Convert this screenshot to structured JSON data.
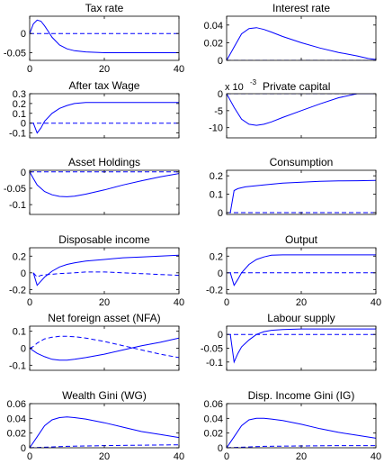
{
  "chart_data": [
    {
      "type": "line",
      "title": "Tax rate",
      "xlim": [
        0,
        40
      ],
      "ylim": [
        -0.07,
        0.045
      ],
      "xticks": [
        0,
        20,
        40
      ],
      "yticks": [
        -0.05,
        0,
        0.05
      ],
      "ytick_labels": [
        "-0.05",
        "0",
        "0.05"
      ],
      "xtick_labels": [
        "0",
        "20",
        "40"
      ],
      "series": [
        {
          "style": "solid",
          "x": [
            0,
            1,
            2,
            3,
            4,
            5,
            6,
            8,
            10,
            12,
            15,
            20,
            25,
            30,
            35,
            40
          ],
          "y": [
            0,
            0.025,
            0.035,
            0.032,
            0.02,
            0.005,
            -0.01,
            -0.03,
            -0.04,
            -0.045,
            -0.048,
            -0.05,
            -0.05,
            -0.05,
            -0.05,
            -0.05
          ]
        },
        {
          "style": "dashed",
          "x": [
            0,
            40
          ],
          "y": [
            0,
            0
          ]
        }
      ]
    },
    {
      "type": "line",
      "title": "Interest rate",
      "xlim": [
        0,
        40
      ],
      "ylim": [
        0,
        0.05
      ],
      "xticks": [],
      "yticks": [
        0,
        0.02,
        0.04
      ],
      "ytick_labels": [
        "0",
        "0.02",
        "0.04"
      ],
      "xtick_labels": [],
      "series": [
        {
          "style": "solid",
          "x": [
            0,
            2,
            4,
            6,
            8,
            10,
            12,
            15,
            20,
            25,
            30,
            35,
            38,
            40
          ],
          "y": [
            0,
            0.015,
            0.03,
            0.036,
            0.037,
            0.035,
            0.032,
            0.027,
            0.02,
            0.014,
            0.009,
            0.005,
            0.002,
            0.001
          ]
        },
        {
          "style": "dashed",
          "x": [
            0,
            40
          ],
          "y": [
            0,
            0
          ]
        }
      ]
    },
    {
      "type": "line",
      "title": "After tax Wage",
      "xlim": [
        0,
        40
      ],
      "ylim": [
        -0.15,
        0.3
      ],
      "xticks": [],
      "yticks": [
        -0.1,
        0,
        0.1,
        0.2,
        0.3
      ],
      "ytick_labels": [
        "-0.1",
        "0",
        "0.1",
        "0.2",
        "0.3"
      ],
      "xtick_labels": [],
      "series": [
        {
          "style": "solid",
          "x": [
            1,
            2,
            3,
            4,
            6,
            8,
            10,
            12,
            15,
            20,
            25,
            30,
            40
          ],
          "y": [
            0,
            -0.1,
            -0.05,
            0.02,
            0.1,
            0.15,
            0.18,
            0.2,
            0.21,
            0.21,
            0.21,
            0.21,
            0.21
          ]
        },
        {
          "style": "dashed",
          "x": [
            0,
            40
          ],
          "y": [
            0,
            0
          ]
        }
      ]
    },
    {
      "type": "line",
      "title": "Private capital",
      "title_prefix": "x 10",
      "title_exp": "-3",
      "xlim": [
        0,
        40
      ],
      "ylim": [
        -13,
        0
      ],
      "xticks": [],
      "yticks": [
        -10,
        -5,
        0
      ],
      "ytick_labels": [
        "-10",
        "-5",
        "0"
      ],
      "xtick_labels": [],
      "series": [
        {
          "style": "solid",
          "x": [
            0,
            2,
            4,
            6,
            8,
            10,
            12,
            15,
            20,
            25,
            30,
            35,
            40
          ],
          "y": [
            0,
            -4,
            -7.5,
            -9,
            -9.3,
            -9,
            -8.3,
            -7,
            -5,
            -3,
            -1.2,
            0,
            0
          ]
        },
        {
          "style": "dashed",
          "x": [
            0,
            40
          ],
          "y": [
            0,
            0
          ]
        }
      ]
    },
    {
      "type": "line",
      "title": "Asset Holdings",
      "xlim": [
        0,
        40
      ],
      "ylim": [
        -0.13,
        0.005
      ],
      "xticks": [],
      "yticks": [
        -0.1,
        -0.05,
        0
      ],
      "ytick_labels": [
        "-0.1",
        "-0.05",
        "0"
      ],
      "xtick_labels": [],
      "series": [
        {
          "style": "solid",
          "x": [
            0,
            1,
            2,
            4,
            6,
            8,
            10,
            12,
            15,
            20,
            25,
            30,
            35,
            40
          ],
          "y": [
            0,
            -0.02,
            -0.04,
            -0.06,
            -0.07,
            -0.075,
            -0.076,
            -0.074,
            -0.068,
            -0.055,
            -0.04,
            -0.027,
            -0.015,
            -0.005
          ]
        },
        {
          "style": "dashed",
          "x": [
            0,
            40
          ],
          "y": [
            0,
            0
          ]
        }
      ]
    },
    {
      "type": "line",
      "title": "Consumption",
      "xlim": [
        0,
        40
      ],
      "ylim": [
        -0.01,
        0.23
      ],
      "xticks": [],
      "yticks": [
        0,
        0.1,
        0.2
      ],
      "ytick_labels": [
        "0",
        "0.1",
        "0.2"
      ],
      "xtick_labels": [],
      "series": [
        {
          "style": "solid",
          "x": [
            1,
            2,
            3,
            5,
            10,
            15,
            20,
            25,
            30,
            35,
            40
          ],
          "y": [
            0,
            0.12,
            0.13,
            0.14,
            0.15,
            0.16,
            0.165,
            0.17,
            0.172,
            0.173,
            0.175
          ]
        },
        {
          "style": "dashed",
          "x": [
            0,
            40
          ],
          "y": [
            0,
            0
          ]
        }
      ]
    },
    {
      "type": "line",
      "title": "Disposable income",
      "xlim": [
        0,
        40
      ],
      "ylim": [
        -0.25,
        0.3
      ],
      "xticks": [
        0,
        20,
        40
      ],
      "yticks": [
        -0.2,
        0,
        0.2
      ],
      "ytick_labels": [
        "-0.2",
        "0",
        "0.2"
      ],
      "xtick_labels": [
        "0",
        "20",
        "40"
      ],
      "series": [
        {
          "style": "solid",
          "x": [
            1,
            2,
            3,
            4,
            6,
            8,
            10,
            12,
            15,
            20,
            25,
            30,
            35,
            40
          ],
          "y": [
            0,
            -0.15,
            -0.1,
            -0.05,
            0.02,
            0.07,
            0.1,
            0.12,
            0.14,
            0.16,
            0.18,
            0.19,
            0.2,
            0.21
          ]
        },
        {
          "style": "dashed",
          "x": [
            1,
            2,
            3,
            5,
            8,
            12,
            15,
            20,
            25,
            30,
            35,
            40
          ],
          "y": [
            0,
            -0.05,
            -0.03,
            -0.02,
            -0.01,
            0,
            0.01,
            0.01,
            0,
            -0.01,
            -0.02,
            -0.03
          ]
        }
      ]
    },
    {
      "type": "line",
      "title": "Output",
      "xlim": [
        0,
        40
      ],
      "ylim": [
        -0.25,
        0.3
      ],
      "xticks": [
        0,
        20,
        40
      ],
      "yticks": [
        -0.2,
        0,
        0.2
      ],
      "ytick_labels": [
        "-0.2",
        "0",
        "0.2"
      ],
      "xtick_labels": [
        "0",
        "20",
        "40"
      ],
      "series": [
        {
          "style": "solid",
          "x": [
            1,
            2,
            3,
            4,
            6,
            8,
            10,
            12,
            15,
            20,
            25,
            30,
            40
          ],
          "y": [
            0,
            -0.15,
            -0.08,
            0,
            0.1,
            0.16,
            0.19,
            0.21,
            0.215,
            0.215,
            0.215,
            0.215,
            0.215
          ]
        },
        {
          "style": "dashed",
          "x": [
            0,
            40
          ],
          "y": [
            0,
            0
          ]
        }
      ]
    },
    {
      "type": "line",
      "title": "Net foreign asset (NFA)",
      "xlim": [
        0,
        40
      ],
      "ylim": [
        -0.13,
        0.13
      ],
      "xticks": [],
      "yticks": [
        -0.1,
        0,
        0.1
      ],
      "ytick_labels": [
        "-0.1",
        "0",
        "0.1"
      ],
      "xtick_labels": [],
      "series": [
        {
          "style": "solid",
          "x": [
            0,
            2,
            4,
            6,
            8,
            10,
            12,
            15,
            20,
            25,
            30,
            35,
            40
          ],
          "y": [
            0,
            -0.03,
            -0.05,
            -0.065,
            -0.07,
            -0.07,
            -0.065,
            -0.055,
            -0.035,
            -0.01,
            0.015,
            0.035,
            0.06
          ]
        },
        {
          "style": "dashed",
          "x": [
            0,
            1,
            2,
            4,
            6,
            8,
            10,
            12,
            15,
            20,
            25,
            30,
            35,
            40
          ],
          "y": [
            0,
            0.01,
            0.03,
            0.055,
            0.065,
            0.07,
            0.07,
            0.068,
            0.06,
            0.04,
            0.015,
            -0.01,
            -0.035,
            -0.055
          ]
        }
      ]
    },
    {
      "type": "line",
      "title": "Labour supply",
      "xlim": [
        0,
        40
      ],
      "ylim": [
        -0.13,
        0.03
      ],
      "xticks": [],
      "yticks": [
        -0.1,
        -0.05,
        0
      ],
      "ytick_labels": [
        "-0.1",
        "-0.05",
        "0"
      ],
      "xtick_labels": [],
      "series": [
        {
          "style": "solid",
          "x": [
            1,
            2,
            3,
            4,
            6,
            8,
            10,
            12,
            15,
            20,
            25,
            30,
            40
          ],
          "y": [
            0,
            -0.1,
            -0.07,
            -0.045,
            -0.02,
            0,
            0.01,
            0.015,
            0.018,
            0.02,
            0.02,
            0.02,
            0.02
          ]
        },
        {
          "style": "dashed",
          "x": [
            0,
            40
          ],
          "y": [
            0,
            0
          ]
        }
      ]
    },
    {
      "type": "line",
      "title": "Wealth Gini (WG)",
      "xlim": [
        0,
        40
      ],
      "ylim": [
        0,
        0.06
      ],
      "xticks": [
        0,
        20,
        40
      ],
      "yticks": [
        0,
        0.02,
        0.04,
        0.06
      ],
      "ytick_labels": [
        "0",
        "0.02",
        "0.04",
        "0.06"
      ],
      "xtick_labels": [
        "0",
        "20",
        "40"
      ],
      "series": [
        {
          "style": "solid",
          "x": [
            0,
            2,
            4,
            6,
            8,
            10,
            12,
            15,
            20,
            25,
            30,
            35,
            40
          ],
          "y": [
            0,
            0.015,
            0.03,
            0.038,
            0.041,
            0.042,
            0.041,
            0.039,
            0.034,
            0.028,
            0.022,
            0.018,
            0.014
          ]
        },
        {
          "style": "dashed",
          "x": [
            0,
            5,
            10,
            20,
            30,
            40
          ],
          "y": [
            0,
            0.001,
            0.002,
            0.003,
            0.0035,
            0.004
          ]
        }
      ]
    },
    {
      "type": "line",
      "title": "Disp. Income Gini (IG)",
      "xlim": [
        0,
        40
      ],
      "ylim": [
        0,
        0.06
      ],
      "xticks": [
        0,
        20,
        40
      ],
      "yticks": [
        0,
        0.02,
        0.04,
        0.06
      ],
      "ytick_labels": [
        "0",
        "0.02",
        "0.04",
        "0.06"
      ],
      "xtick_labels": [
        "0",
        "20",
        "40"
      ],
      "series": [
        {
          "style": "solid",
          "x": [
            0,
            2,
            4,
            6,
            8,
            10,
            12,
            15,
            20,
            25,
            30,
            35,
            40
          ],
          "y": [
            0,
            0.015,
            0.03,
            0.038,
            0.04,
            0.04,
            0.039,
            0.037,
            0.032,
            0.026,
            0.021,
            0.017,
            0.013
          ]
        },
        {
          "style": "dashed",
          "x": [
            0,
            5,
            10,
            20,
            30,
            40
          ],
          "y": [
            0,
            0.001,
            0.002,
            0.0025,
            0.003,
            0.003
          ]
        }
      ]
    }
  ]
}
